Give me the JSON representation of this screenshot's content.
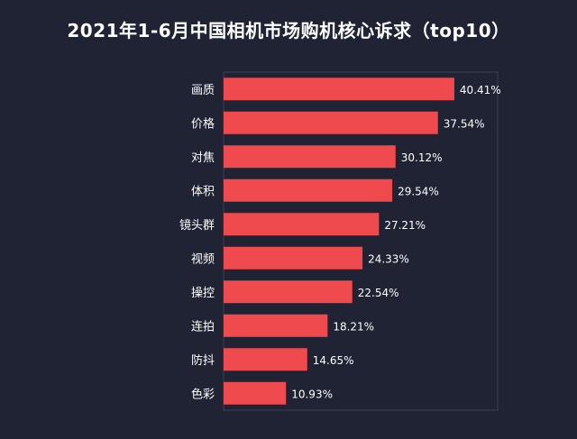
{
  "chart_data": {
    "type": "bar",
    "orientation": "horizontal",
    "title": "2021年1-6月中国相机市场购机核心诉求（top10）",
    "categories": [
      "画质",
      "价格",
      "对焦",
      "体积",
      "镜头群",
      "视频",
      "操控",
      "连拍",
      "防抖",
      "色彩"
    ],
    "values": [
      40.41,
      37.54,
      30.12,
      29.54,
      27.21,
      24.33,
      22.54,
      18.21,
      14.65,
      10.93
    ],
    "value_labels": [
      "40.41%",
      "37.54%",
      "30.12%",
      "29.54%",
      "27.21%",
      "24.33%",
      "22.54%",
      "18.21%",
      "14.65%",
      "10.93%"
    ],
    "unit": "%",
    "xlim": [
      0,
      48
    ],
    "grid": false,
    "colors": {
      "bar": "#ef4a4e",
      "background": "#1f2333",
      "plot_border": "#3c4156",
      "text": "#ffffff"
    }
  }
}
